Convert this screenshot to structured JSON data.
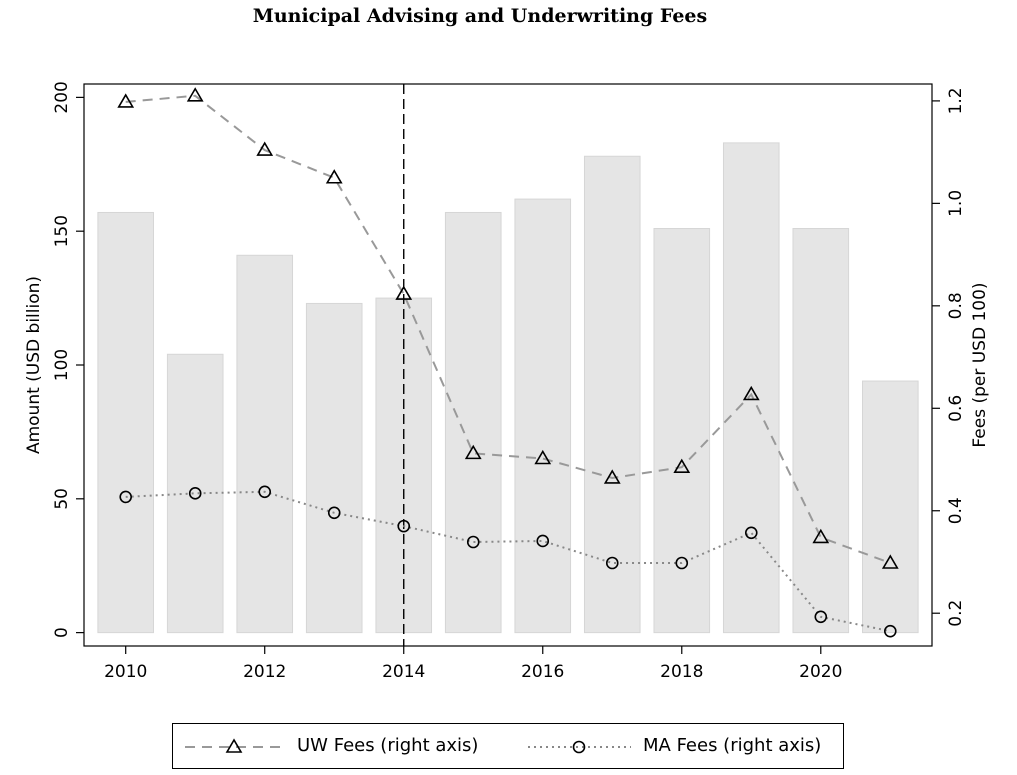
{
  "chart_data": {
    "type": "bar+line",
    "title": "Municipal Advising and Underwriting Fees",
    "x": [
      2010,
      2011,
      2012,
      2013,
      2014,
      2015,
      2016,
      2017,
      2018,
      2019,
      2020,
      2021
    ],
    "xticks": [
      2010,
      2012,
      2014,
      2016,
      2018,
      2020
    ],
    "xlim": [
      2009.4,
      2021.6
    ],
    "left_axis": {
      "label": "Amount (USD billion)",
      "ylim": [
        -5,
        205
      ],
      "ticks": [
        0,
        50,
        100,
        150,
        200
      ]
    },
    "right_axis": {
      "label": "Fees (per USD 100)",
      "ylim": [
        0.136,
        1.233
      ],
      "ticks": [
        "0.2",
        "0.4",
        "0.6",
        "0.8",
        "1.0",
        "1.2"
      ]
    },
    "bars": {
      "axis": "left",
      "color": "#e5e5e5",
      "values": [
        157,
        104,
        141,
        123,
        125,
        157,
        162,
        178,
        151,
        183,
        151,
        94
      ]
    },
    "series": [
      {
        "name": "UW Fees (right axis)",
        "axis": "right",
        "style": "dashed",
        "marker": "triangle",
        "color": "#999999",
        "values": [
          1.198,
          1.21,
          1.104,
          1.05,
          0.823,
          0.512,
          0.502,
          0.464,
          0.485,
          0.627,
          0.348,
          0.298
        ]
      },
      {
        "name": "MA Fees (right axis)",
        "axis": "right",
        "style": "dotted",
        "marker": "circle",
        "color": "#888888",
        "values": [
          0.427,
          0.434,
          0.437,
          0.396,
          0.37,
          0.339,
          0.341,
          0.298,
          0.298,
          0.357,
          0.193,
          0.165
        ]
      }
    ],
    "vline": {
      "x": 2014,
      "style": "dashed"
    },
    "legend": "bottom"
  }
}
